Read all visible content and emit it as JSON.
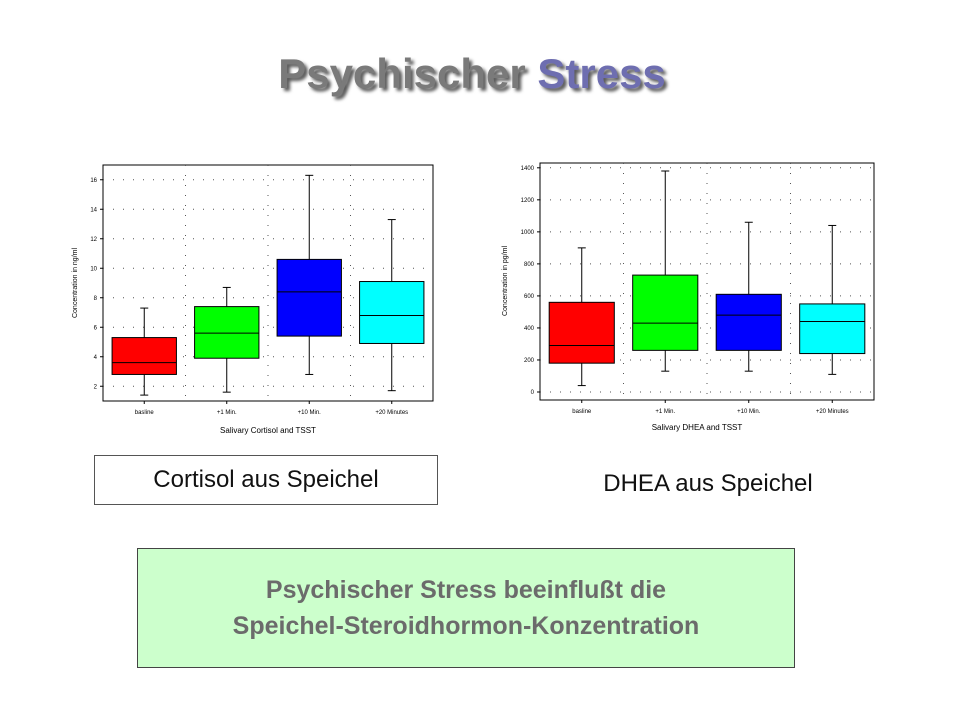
{
  "slide": {
    "title_part1": "Psychischer",
    "title_part2": "Stress",
    "caption_cortisol": "Cortisol aus Speichel",
    "caption_dhea": "DHEA aus Speichel",
    "summary_line1": "Psychischer Stress beeinflußt die",
    "summary_line2": "Speichel-Steroidhormon-Konzentration"
  },
  "chart_data": [
    {
      "type": "box",
      "title": "",
      "xlabel": "Salivary Cortisol and TSST",
      "ylabel": "Concentration in ng/ml",
      "categories": [
        "basline",
        "+1 Min.",
        "+10 Min.",
        "+20 Minutes"
      ],
      "ylim": [
        1,
        17
      ],
      "yticks": [
        2,
        4,
        6,
        8,
        10,
        12,
        14,
        16
      ],
      "grid": true,
      "boxes": [
        {
          "min": 1.4,
          "q1": 2.8,
          "median": 3.6,
          "q3": 5.3,
          "max": 7.3,
          "color": "#ff0000"
        },
        {
          "min": 1.6,
          "q1": 3.9,
          "median": 5.6,
          "q3": 7.4,
          "max": 8.7,
          "color": "#00ff00"
        },
        {
          "min": 2.8,
          "q1": 5.4,
          "median": 8.4,
          "q3": 10.6,
          "max": 16.3,
          "color": "#0000ff"
        },
        {
          "min": 1.7,
          "q1": 4.9,
          "median": 6.8,
          "q3": 9.1,
          "max": 13.3,
          "color": "#00ffff"
        }
      ]
    },
    {
      "type": "box",
      "title": "",
      "xlabel": "Salivary DHEA and TSST",
      "ylabel": "Concentration in pg/ml",
      "categories": [
        "basline",
        "+1 Min.",
        "+10 Min.",
        "+20 Minutes"
      ],
      "ylim": [
        -50,
        1430
      ],
      "yticks": [
        0,
        200,
        400,
        600,
        800,
        1000,
        1200,
        1400
      ],
      "grid": true,
      "boxes": [
        {
          "min": 40,
          "q1": 180,
          "median": 290,
          "q3": 560,
          "max": 900,
          "color": "#ff0000"
        },
        {
          "min": 130,
          "q1": 260,
          "median": 430,
          "q3": 730,
          "max": 1380,
          "color": "#00ff00"
        },
        {
          "min": 130,
          "q1": 260,
          "median": 480,
          "q3": 610,
          "max": 1060,
          "color": "#0000ff"
        },
        {
          "min": 110,
          "q1": 240,
          "median": 440,
          "q3": 550,
          "max": 1040,
          "color": "#00ffff"
        }
      ]
    }
  ]
}
